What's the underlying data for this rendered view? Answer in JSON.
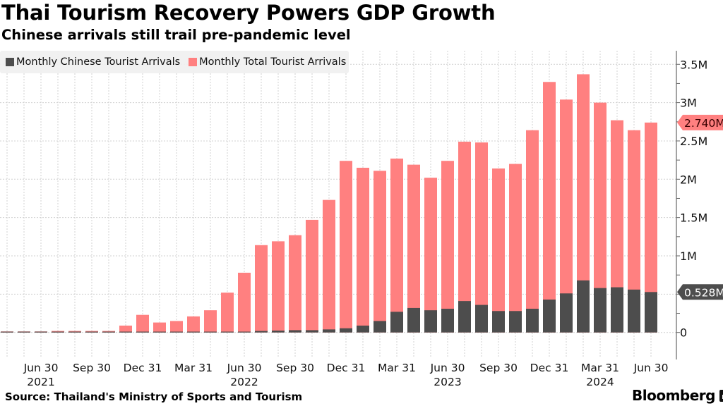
{
  "header": {
    "title": "Thai Tourism Recovery Powers GDP Growth",
    "subtitle": "Chinese arrivals still trail pre-pandemic level"
  },
  "footer": {
    "source": "Source: Thailand's Ministry of Sports and Tourism",
    "brand": "Bloomberg"
  },
  "colors": {
    "chinese": "#4d4d4d",
    "total": "#ff8080",
    "grid": "#cccccc",
    "axis": "#666666"
  },
  "chart_data": {
    "type": "bar",
    "stacked": false,
    "overlay": true,
    "title": "Thai Tourism Recovery Powers GDP Growth",
    "subtitle": "Chinese arrivals still trail pre-pandemic level",
    "xlabel": "",
    "ylabel": "",
    "ylim": [
      0,
      3.7
    ],
    "y_unit": "M",
    "grid": true,
    "legend_position": "top-left",
    "y_axis_side": "right",
    "y_ticks": [
      {
        "value": 0,
        "label": "0"
      },
      {
        "value": 0.5,
        "label": ""
      },
      {
        "value": 1,
        "label": "1M"
      },
      {
        "value": 1.5,
        "label": "1.5M"
      },
      {
        "value": 2,
        "label": "2M"
      },
      {
        "value": 2.5,
        "label": "2.5M"
      },
      {
        "value": 3,
        "label": "3M"
      },
      {
        "value": 3.5,
        "label": "3.5M"
      }
    ],
    "minor_y_ticks": [
      0.25,
      0.75,
      1.25,
      1.75,
      2.25,
      2.75,
      3.25
    ],
    "x_ticks": [
      {
        "index": 2,
        "label": "Jun 30",
        "year": "2021"
      },
      {
        "index": 5,
        "label": "Sep 30",
        "year": ""
      },
      {
        "index": 8,
        "label": "Dec 31",
        "year": ""
      },
      {
        "index": 11,
        "label": "Mar 31",
        "year": ""
      },
      {
        "index": 14,
        "label": "Jun 30",
        "year": "2022"
      },
      {
        "index": 17,
        "label": "Sep 30",
        "year": ""
      },
      {
        "index": 20,
        "label": "Dec 31",
        "year": ""
      },
      {
        "index": 23,
        "label": "Mar 31",
        "year": ""
      },
      {
        "index": 26,
        "label": "Jun 30",
        "year": "2023"
      },
      {
        "index": 29,
        "label": "Sep 30",
        "year": ""
      },
      {
        "index": 32,
        "label": "Dec 31",
        "year": ""
      },
      {
        "index": 35,
        "label": "Mar 31",
        "year": "2024"
      },
      {
        "index": 38,
        "label": "Jun 30",
        "year": ""
      }
    ],
    "categories": [
      "Apr 2021",
      "May 2021",
      "Jun 2021",
      "Jul 2021",
      "Aug 2021",
      "Sep 2021",
      "Oct 2021",
      "Nov 2021",
      "Dec 2021",
      "Jan 2022",
      "Feb 2022",
      "Mar 2022",
      "Apr 2022",
      "May 2022",
      "Jun 2022",
      "Jul 2022",
      "Aug 2022",
      "Sep 2022",
      "Oct 2022",
      "Nov 2022",
      "Dec 2022",
      "Jan 2023",
      "Feb 2023",
      "Mar 2023",
      "Apr 2023",
      "May 2023",
      "Jun 2023",
      "Jul 2023",
      "Aug 2023",
      "Sep 2023",
      "Oct 2023",
      "Nov 2023",
      "Dec 2023",
      "Jan 2024",
      "Feb 2024",
      "Mar 2024",
      "Apr 2024",
      "May 2024",
      "Jun 2024"
    ],
    "series": [
      {
        "name": "Monthly Total Tourist Arrivals",
        "color": "#ff8080",
        "values": [
          0.01,
          0.01,
          0.01,
          0.02,
          0.02,
          0.02,
          0.02,
          0.09,
          0.23,
          0.13,
          0.15,
          0.21,
          0.29,
          0.52,
          0.78,
          1.14,
          1.19,
          1.27,
          1.47,
          1.73,
          2.24,
          2.15,
          2.11,
          2.27,
          2.19,
          2.02,
          2.24,
          2.49,
          2.48,
          2.14,
          2.2,
          2.64,
          3.27,
          3.04,
          3.37,
          3.0,
          2.77,
          2.64,
          2.74
        ],
        "last_value_label": "2.740M"
      },
      {
        "name": "Monthly Chinese Tourist Arrivals",
        "color": "#4d4d4d",
        "values": [
          0.001,
          0.001,
          0.001,
          0.001,
          0.001,
          0.001,
          0.001,
          0.002,
          0.002,
          0.002,
          0.003,
          0.003,
          0.004,
          0.006,
          0.01,
          0.02,
          0.025,
          0.03,
          0.03,
          0.04,
          0.055,
          0.09,
          0.15,
          0.27,
          0.32,
          0.29,
          0.31,
          0.41,
          0.36,
          0.28,
          0.28,
          0.31,
          0.43,
          0.51,
          0.68,
          0.58,
          0.59,
          0.56,
          0.528
        ],
        "last_value_label": "0.528M"
      }
    ]
  }
}
